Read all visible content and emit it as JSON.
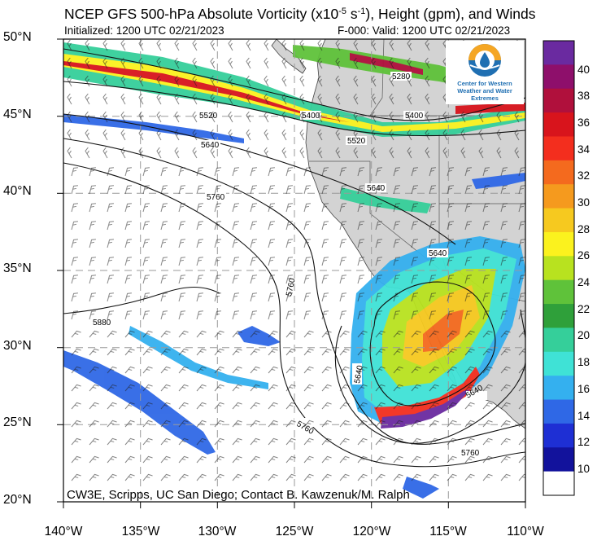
{
  "title": {
    "main": "NCEP GFS 500-hPa Absolute Vorticity (x10",
    "exponent": "-5",
    "unit": " s",
    "unit_exponent": "-1",
    "rest": "), Height (gpm), and Winds"
  },
  "subtitle": {
    "initialized": "Initialized: 1200 UTC 02/21/2023",
    "valid": "F-000: Valid: 1200 UTC 02/21/2023"
  },
  "map": {
    "lat_labels": [
      "50°N",
      "45°N",
      "40°N",
      "35°N",
      "30°N",
      "25°N",
      "20°N"
    ],
    "lon_labels": [
      "140°W",
      "135°W",
      "130°W",
      "125°W",
      "120°W",
      "115°W",
      "110°W"
    ],
    "extent": {
      "lon_min": -140,
      "lon_max": -110,
      "lat_min": 20,
      "lat_max": 50
    },
    "contour_labels": [
      "5280",
      "5400",
      "5520",
      "5520",
      "5400",
      "5640",
      "5640",
      "5640",
      "5760",
      "5760",
      "5880",
      "5640",
      "5640",
      "5760",
      "5760"
    ],
    "colors": {
      "land": "#d3d3d3",
      "ocean": "#ffffff",
      "grid": "#9a9a9a"
    }
  },
  "colorbar": {
    "labels": [
      "40",
      "38",
      "36",
      "34",
      "32",
      "30",
      "28",
      "26",
      "24",
      "22",
      "20",
      "18",
      "16",
      "14",
      "12",
      "10"
    ],
    "colors": [
      "#6a2aa0",
      "#8e0f6b",
      "#b0103c",
      "#d8141c",
      "#f32e1e",
      "#f46a1e",
      "#f59a1e",
      "#f6c91f",
      "#fbf21e",
      "#b8e21f",
      "#5fc23a",
      "#2fa03a",
      "#35cf9a",
      "#3fe2d6",
      "#34b0ef",
      "#2f68e6",
      "#1e2fd4",
      "#12129c",
      "#ffffff"
    ]
  },
  "logo": {
    "text": "Center for Western Weather and Water Extremes"
  },
  "credit": "CW3E, Scripps, UC San Diego; Contact B. Kawzenuk/M. Ralph"
}
